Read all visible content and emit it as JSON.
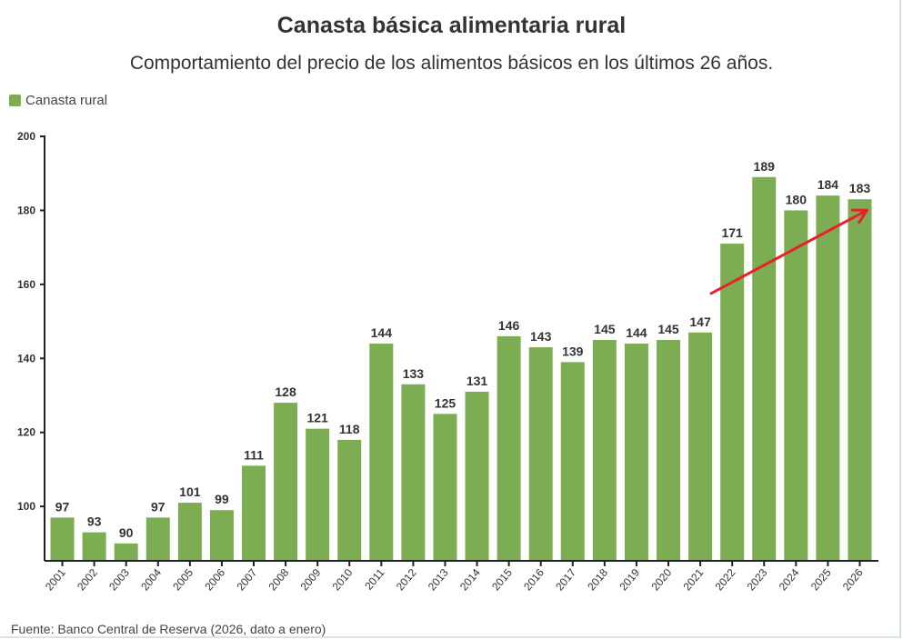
{
  "chart_data": {
    "type": "bar",
    "title": "Canasta básica alimentaria rural",
    "subtitle": "Comportamiento del precio de los alimentos básicos en los últimos 26 años.",
    "legend": [
      {
        "name": "Canasta rural",
        "color": "#7cad53"
      }
    ],
    "legend_position": "top-left",
    "source": "Fuente: Banco Central de Reserva (2026, dato a enero)",
    "categories": [
      "2001",
      "2002",
      "2003",
      "2004",
      "2005",
      "2006",
      "2007",
      "2008",
      "2009",
      "2010",
      "2011",
      "2012",
      "2013",
      "2014",
      "2015",
      "2016",
      "2017",
      "2018",
      "2019",
      "2020",
      "2021",
      "2022",
      "2023",
      "2024",
      "2025",
      "2026"
    ],
    "series": [
      {
        "name": "Canasta rural",
        "values": [
          97,
          93,
          90,
          97,
          101,
          99,
          111,
          128,
          121,
          118,
          144,
          133,
          125,
          131,
          146,
          143,
          139,
          145,
          144,
          145,
          147,
          171,
          189,
          180,
          184,
          183
        ]
      }
    ],
    "yticks": [
      "100",
      "120",
      "140",
      "160",
      "180",
      "200"
    ],
    "ylim": [
      85.3,
      200
    ],
    "grid": false,
    "annotation": {
      "type": "arrow",
      "color": "#e8202a",
      "from": {
        "x": "2021",
        "y": 160
      },
      "to": {
        "x": "2026",
        "y": 182
      }
    }
  }
}
